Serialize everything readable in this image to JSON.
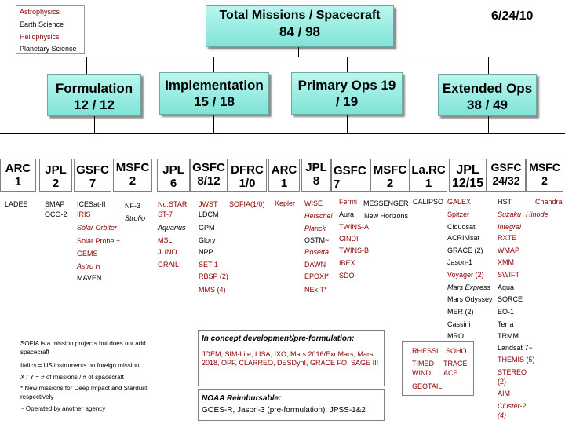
{
  "legend": {
    "items": [
      {
        "label": "Astrophysics",
        "color": "#8b0000"
      },
      {
        "label": "Earth Science",
        "color": "#000000"
      },
      {
        "label": "Heliophysics",
        "color": "#8b0000"
      },
      {
        "label": "Planetary Science",
        "color": "#000000"
      }
    ]
  },
  "header": {
    "title": "Total Missions / Spacecraft",
    "count": "84 / 98",
    "date": "6/24/10"
  },
  "categories": [
    {
      "label": "Formulation",
      "count": "12 / 12"
    },
    {
      "label": "Implementation",
      "count": "15 / 18"
    },
    {
      "label": "Primary Ops 19",
      "count": "/ 19"
    },
    {
      "label": "Extended Ops",
      "count": "38 / 49"
    }
  ],
  "centers": {
    "form_arc": {
      "name": "ARC",
      "count": "1"
    },
    "form_jpl": {
      "name": "JPL",
      "count": "2"
    },
    "form_gsfc": {
      "name": "GSFC",
      "count": "7"
    },
    "form_msfc": {
      "name": "MSFC",
      "count": "2"
    },
    "impl_jpl": {
      "name": "JPL",
      "count": "6"
    },
    "impl_gsfc": {
      "name": "GSFC",
      "count": "8/12"
    },
    "impl_dfrc": {
      "name": "DFRC",
      "count": "1/0"
    },
    "prim_arc": {
      "name": "ARC",
      "count": "1"
    },
    "prim_jpl": {
      "name": "JPL",
      "count": "8"
    },
    "prim_gsfc": {
      "name": "GSFC 7",
      "count": ""
    },
    "prim_msfc": {
      "name": "MSFC",
      "count": "2"
    },
    "prim_larc": {
      "name": "La.RC",
      "count": "1"
    },
    "ext_jpl": {
      "name": "JPL",
      "count": "12/15"
    },
    "ext_gsfc": {
      "name": "GSFC",
      "count": "24/32"
    },
    "ext_msfc": {
      "name": "MSFC",
      "count": "2"
    }
  },
  "missions": {
    "ladee": "LADEE",
    "smap": "SMAP",
    "oco2": "OCO-2",
    "icesat2": "ICESat-II",
    "iris": "IRIS",
    "solar_orbiter": "Solar Orbiter",
    "solar_probe": "Solar Probe +",
    "gems": "GEMS",
    "astro_h": "Astro H",
    "maven": "MAVEN",
    "nf3": "NF-3",
    "strofio": "Strofio",
    "nustar": "Nu.STAR",
    "st7": "ST-7",
    "aquarius": "Aquarius",
    "msl": "MSL",
    "juno": "JUNO",
    "grail": "GRAIL",
    "ldcm": "LDCM",
    "gpm": "GPM",
    "glory": "Glory",
    "npp": "NPP",
    "set1": "SET-1",
    "rbsp": "RBSP (2)",
    "mms": "MMS (4)",
    "jwst": "JWST",
    "sofia": "SOFIA(1/0)",
    "kepler": "Kepler",
    "wise": "WISE",
    "herschel": "Herschel",
    "planck": "Planck",
    "ostm": "OSTM~",
    "rosetta": "Rosetta",
    "dawn": "DAWN",
    "epoxi": "EPOXI*",
    "next": "NEx.T*",
    "fermi": "Fermi",
    "aura": "Aura",
    "twins_a": "TWINS-A",
    "cindi": "CINDI",
    "twins_b": "TWINS-B",
    "ibex": "IBEX",
    "sdo": "SDO",
    "messenger": "MESSENGER",
    "new_horizons": "New Horizons",
    "calipso": "CALIPSO",
    "galex": "GALEX",
    "spitzer": "Spitzer",
    "cloudsat": "Cloudsat",
    "acrimsat": "ACRIMsat",
    "grace": "GRACE (2)",
    "jason1": "Jason-1",
    "voyager": "Voyager (2)",
    "mars_express": "Mars Express",
    "mars_odyssey": "Mars Odyssey",
    "mer": "MER (2)",
    "cassini": "Cassini",
    "mro": "MRO",
    "hst": "HST",
    "integral": "Integral",
    "rxte": "RXTE",
    "wmap": "WMAP",
    "xmm": "XMM",
    "swift": "SWIFT",
    "aqua": "Aqua",
    "sorce": "SORCE",
    "eo1": "EO-1",
    "terra": "Terra",
    "trmm": "TRMM",
    "landsat": "Landsat 7~",
    "themis": "THEMIS (5)",
    "stereo": "STEREO",
    "stereo_n": "(2)",
    "aim": "AIM",
    "cluster": "Cluster-2",
    "cluster_n": "(4)",
    "chandra": "Chandra",
    "suzaku": "Suzaku",
    "hinode": "Hinode",
    "rhessi": "RHESSI",
    "soho": "SOHO",
    "timed": "TIMED",
    "trace": "TRACE",
    "wind": "WIND",
    "ace": "ACE",
    "geotail": "GEOTAIL"
  },
  "notes": {
    "n1": "SOFIA is a mission projects but does not add spacecraft",
    "n2": "Italics = US instruments on foreign mission",
    "n3": "X / Y = # of missions / # of spacecraft",
    "n4": "* New missions for Deep Impact and Stardust, respectively",
    "n5": "~ Operated by another agency"
  },
  "concept": {
    "title": "In concept development/pre-formulation:",
    "text": "JDEM, SIM-Lite, LISA, IXO, Mars 2016/ExoMars, Mars 2018, OPF, CLARREO, DESDynI, GRACE FO, SAGE III",
    "reimb_title": "NOAA Reimbursable:",
    "reimb_text": "GOES-R, Jason-3 (pre-formulation), JPSS-1&2"
  }
}
